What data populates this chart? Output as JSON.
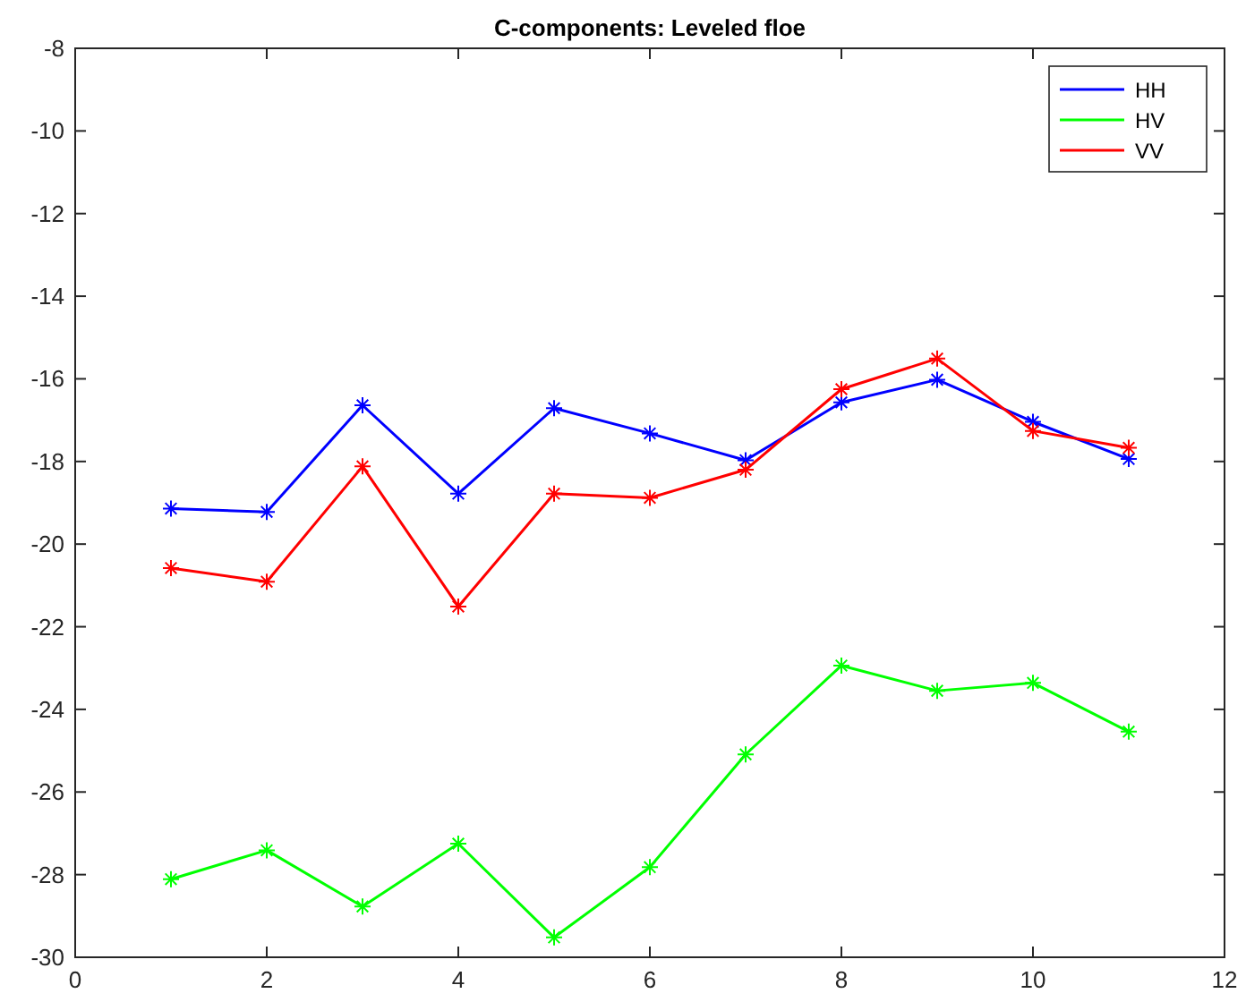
{
  "chart_data": {
    "type": "line",
    "title": "C-components: Leveled floe",
    "x": [
      1,
      2,
      3,
      4,
      5,
      6,
      7,
      8,
      9,
      10,
      11
    ],
    "series": [
      {
        "name": "HH",
        "color": "#0000ff",
        "values": [
          -19.14,
          -19.22,
          -16.64,
          -18.78,
          -16.71,
          -17.32,
          -17.97,
          -16.57,
          -16.02,
          -17.04,
          -17.94
        ]
      },
      {
        "name": "HV",
        "color": "#00ff00",
        "values": [
          -28.11,
          -27.41,
          -28.77,
          -27.25,
          -29.52,
          -27.82,
          -25.09,
          -22.94,
          -23.55,
          -23.36,
          -24.54
        ]
      },
      {
        "name": "VV",
        "color": "#ff0000",
        "values": [
          -20.58,
          -20.91,
          -18.12,
          -21.51,
          -18.78,
          -18.88,
          -18.2,
          -16.25,
          -15.51,
          -17.26,
          -17.67
        ]
      }
    ],
    "xlim": [
      0,
      12
    ],
    "xticks": [
      0,
      2,
      4,
      6,
      8,
      10,
      12
    ],
    "ylim": [
      -30,
      -8
    ],
    "yticks": [
      -30,
      -28,
      -26,
      -24,
      -22,
      -20,
      -18,
      -16,
      -14,
      -12,
      -10,
      -8
    ],
    "grid": false,
    "legend": "top right",
    "marker": "cross",
    "line_style": "solid"
  }
}
